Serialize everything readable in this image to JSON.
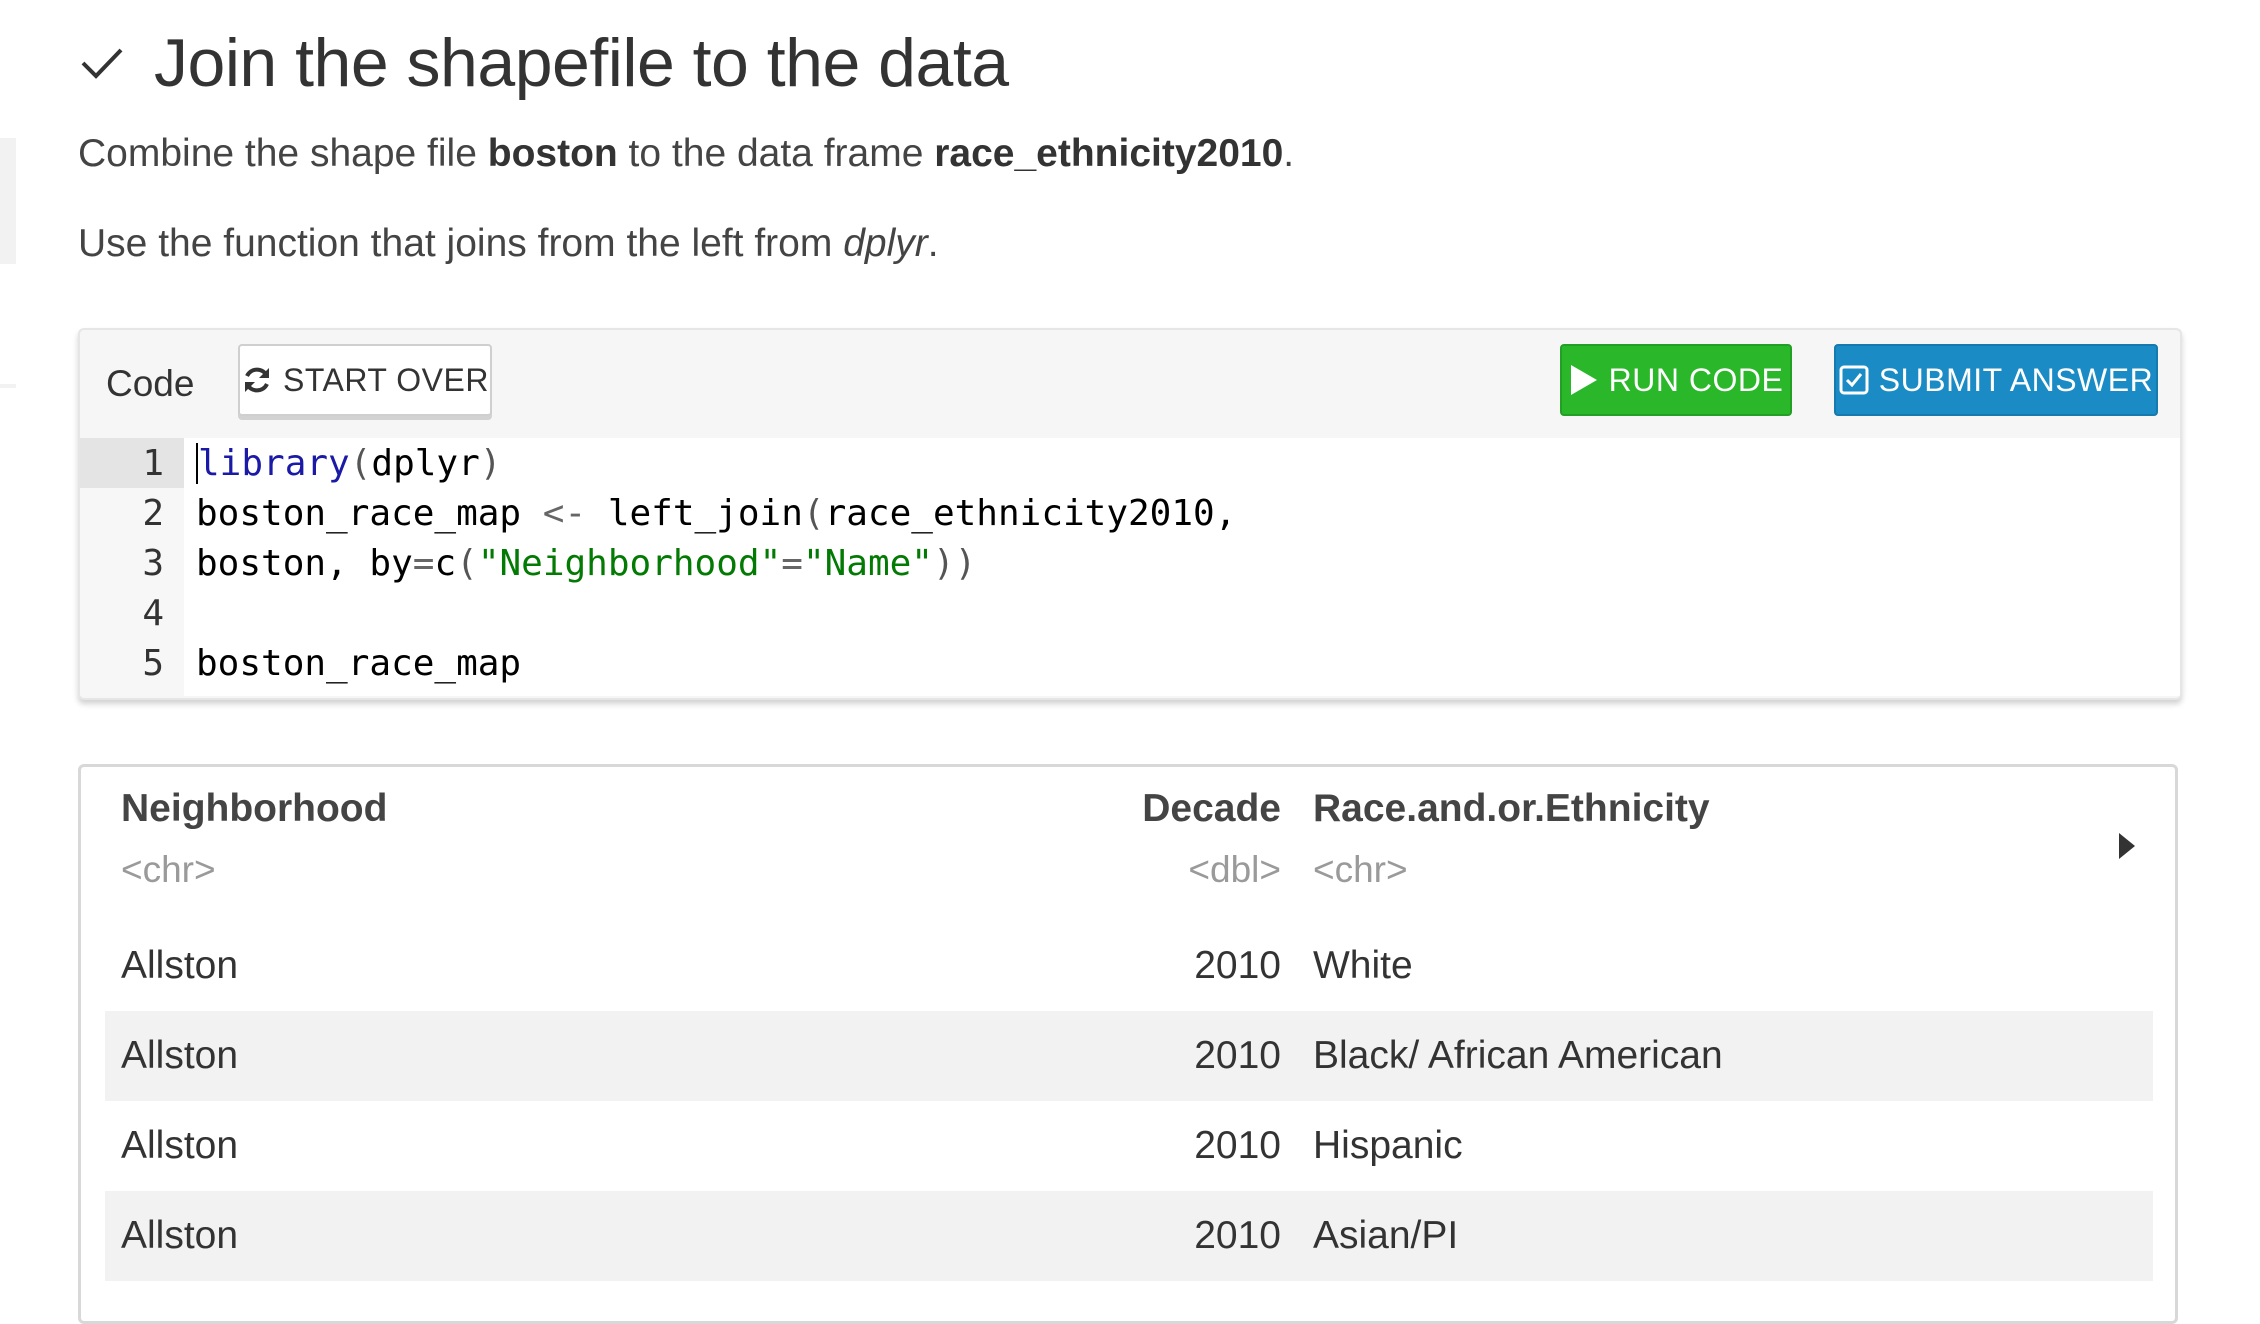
{
  "exercise": {
    "title": "Join the shapefile to the data",
    "instruction_parts": [
      {
        "text": "Combine the shape file ",
        "style": "normal"
      },
      {
        "text": "boston",
        "style": "bold"
      },
      {
        "text": " to the data frame ",
        "style": "normal"
      },
      {
        "text": "race_ethnicity2010",
        "style": "bold"
      },
      {
        "text": ".",
        "style": "normal"
      }
    ],
    "hint_parts": [
      {
        "text": "Use the function that joins from the left from ",
        "style": "normal"
      },
      {
        "text": "dplyr",
        "style": "italic"
      },
      {
        "text": ".",
        "style": "normal"
      }
    ]
  },
  "code_panel": {
    "label": "Code",
    "start_over_label": "START OVER",
    "run_code_label": "RUN CODE",
    "submit_label": "SUBMIT ANSWER",
    "lines": [
      {
        "number": "1",
        "code": "library(dplyr)"
      },
      {
        "number": "2",
        "code": "boston_race_map <- left_join(race_ethnicity2010,"
      },
      {
        "number": "3",
        "code": "boston, by=c(\"Neighborhood\"=\"Name\"))"
      },
      {
        "number": "4",
        "code": ""
      },
      {
        "number": "5",
        "code": "boston_race_map"
      }
    ]
  },
  "result_table": {
    "columns": [
      {
        "name": "Neighborhood",
        "type": "<chr>"
      },
      {
        "name": "Decade",
        "type": "<dbl>"
      },
      {
        "name": "Race.and.or.Ethnicity",
        "type": "<chr>"
      }
    ],
    "rows": [
      [
        "Allston",
        "2010",
        "White"
      ],
      [
        "Allston",
        "2010",
        "Black/ African American"
      ],
      [
        "Allston",
        "2010",
        "Hispanic"
      ],
      [
        "Allston",
        "2010",
        "Asian/PI"
      ]
    ]
  },
  "colors": {
    "run_button": "#2ab82a",
    "submit_button": "#1a8bc4",
    "code_function": "#1a1aa6",
    "code_string": "#037a03"
  },
  "icons": {
    "title": "check-icon",
    "start_over": "refresh-icon",
    "run": "play-icon",
    "submit": "checkbox-icon",
    "table_expand": "caret-right-icon"
  }
}
